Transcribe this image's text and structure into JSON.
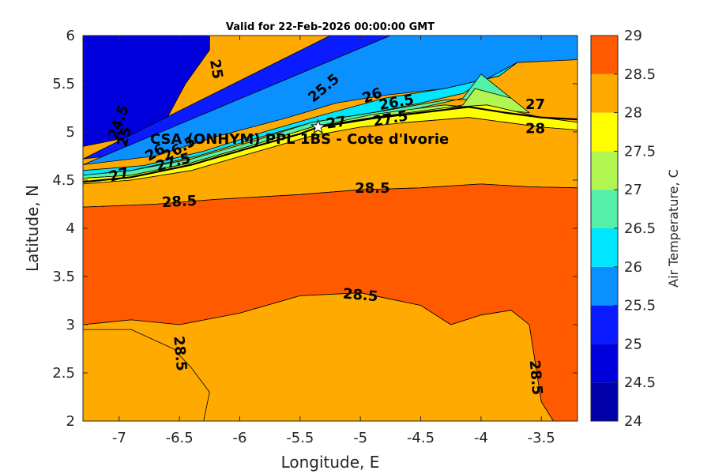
{
  "chart_data": {
    "type": "heatmap",
    "subtype": "filled-contour-map",
    "title": "Valid for 22-Feb-2026 00:00:00 GMT",
    "xlabel": "Longitude, E",
    "ylabel": "Latitude, N",
    "xlim": [
      -7.3,
      -3.2
    ],
    "ylim": [
      2,
      6
    ],
    "x_ticks": [
      -7,
      -6.5,
      -6,
      -5.5,
      -5,
      -4.5,
      -4,
      -3.5
    ],
    "x_tick_labels": [
      "-7",
      "-6.5",
      "-6",
      "-5.5",
      "-5",
      "-4.5",
      "-4",
      "-3.5"
    ],
    "y_ticks": [
      2,
      2.5,
      3,
      3.5,
      4,
      4.5,
      5,
      5.5,
      6
    ],
    "y_tick_labels": [
      "2",
      "2.5",
      "3",
      "3.5",
      "4",
      "4.5",
      "5",
      "5.5",
      "6"
    ],
    "grid": false,
    "colorbar": {
      "label": "Air Temperature, C",
      "placement": "right",
      "levels": [
        24,
        24.5,
        25,
        25.5,
        26,
        26.5,
        27,
        27.5,
        28,
        28.5,
        29
      ],
      "level_labels": [
        "24",
        "24.5",
        "25",
        "25.5",
        "26",
        "26.5",
        "27",
        "27.5",
        "28",
        "28.5",
        "29"
      ],
      "colors": [
        "#0000aa",
        "#0000dd",
        "#0a1cff",
        "#0a90ff",
        "#00e6ff",
        "#55f0a8",
        "#b0f550",
        "#ffff00",
        "#ffaa00",
        "#ff5a00",
        "#ff0000"
      ]
    },
    "bands": [
      {
        "level": 24,
        "points": [
          [
            -7.3,
            6
          ],
          [
            -6.8,
            6
          ],
          [
            -6.6,
            5.8
          ],
          [
            -6.65,
            5.45
          ],
          [
            -6.85,
            5.25
          ],
          [
            -7.3,
            5.1
          ]
        ]
      },
      {
        "level": 24.5,
        "points": [
          [
            -7.3,
            6
          ],
          [
            -6.25,
            6
          ],
          [
            -6.25,
            5.85
          ],
          [
            -6.45,
            5.5
          ],
          [
            -6.6,
            5.15
          ],
          [
            -6.9,
            4.95
          ],
          [
            -7.3,
            4.85
          ]
        ]
      },
      {
        "level": 25,
        "points": [
          [
            -5.25,
            6
          ],
          [
            -4.75,
            6
          ],
          [
            -5.3,
            5.5
          ],
          [
            -5.5,
            5.3
          ],
          [
            -5.8,
            5.15
          ],
          [
            -6.2,
            5.0
          ],
          [
            -6.6,
            4.85
          ],
          [
            -6.9,
            4.78
          ],
          [
            -7.3,
            4.72
          ]
        ]
      },
      {
        "level": 25.5,
        "points": [
          [
            -4.75,
            6
          ],
          [
            -3.2,
            6
          ],
          [
            -3.2,
            5.75
          ],
          [
            -3.7,
            5.72
          ],
          [
            -3.85,
            5.58
          ],
          [
            -4.3,
            5.45
          ],
          [
            -4.8,
            5.38
          ],
          [
            -5.2,
            5.3
          ],
          [
            -5.6,
            5.15
          ],
          [
            -6.2,
            4.95
          ],
          [
            -6.7,
            4.75
          ],
          [
            -7.3,
            4.66
          ]
        ]
      },
      {
        "level": 26,
        "points": [
          [
            -3.7,
            5.72
          ],
          [
            -3.85,
            5.58
          ],
          [
            -4.3,
            5.45
          ],
          [
            -4.8,
            5.35
          ],
          [
            -5.3,
            5.18
          ],
          [
            -5.8,
            5.0
          ],
          [
            -6.3,
            4.8
          ],
          [
            -6.8,
            4.65
          ],
          [
            -7.3,
            4.6
          ],
          [
            -7.3,
            4.55
          ],
          [
            -6.9,
            4.6
          ],
          [
            -6.35,
            4.75
          ],
          [
            -5.9,
            4.92
          ],
          [
            -5.4,
            5.1
          ],
          [
            -4.9,
            5.2
          ],
          [
            -4.5,
            5.3
          ],
          [
            -4.15,
            5.4
          ],
          [
            -3.95,
            5.55
          ]
        ]
      },
      {
        "level": 26.5,
        "points": [
          [
            -4.0,
            5.6
          ],
          [
            -3.85,
            5.45
          ],
          [
            -3.75,
            5.35
          ],
          [
            -4.3,
            5.33
          ],
          [
            -4.8,
            5.22
          ],
          [
            -5.4,
            5.1
          ],
          [
            -5.9,
            4.9
          ],
          [
            -6.4,
            4.72
          ],
          [
            -6.9,
            4.6
          ],
          [
            -7.3,
            4.55
          ],
          [
            -7.3,
            4.52
          ],
          [
            -6.9,
            4.55
          ],
          [
            -6.4,
            4.68
          ],
          [
            -5.9,
            4.86
          ],
          [
            -5.4,
            5.05
          ],
          [
            -4.9,
            5.15
          ],
          [
            -4.5,
            5.25
          ],
          [
            -4.15,
            5.35
          ]
        ]
      },
      {
        "level": 27,
        "points": [
          [
            -4.05,
            5.45
          ],
          [
            -3.75,
            5.35
          ],
          [
            -3.6,
            5.2
          ],
          [
            -4.3,
            5.28
          ],
          [
            -4.9,
            5.18
          ],
          [
            -5.4,
            5.05
          ],
          [
            -5.9,
            4.86
          ],
          [
            -6.4,
            4.68
          ],
          [
            -6.9,
            4.55
          ],
          [
            -7.3,
            4.52
          ],
          [
            -7.3,
            4.48
          ],
          [
            -6.9,
            4.52
          ],
          [
            -6.4,
            4.64
          ],
          [
            -5.9,
            4.82
          ],
          [
            -5.4,
            5.0
          ],
          [
            -4.9,
            5.1
          ],
          [
            -4.5,
            5.2
          ],
          [
            -4.15,
            5.28
          ]
        ]
      },
      {
        "level": 27.5,
        "points": [
          [
            -3.95,
            5.28
          ],
          [
            -3.5,
            5.15
          ],
          [
            -3.2,
            5.1
          ],
          [
            -3.2,
            5.02
          ],
          [
            -3.5,
            5.05
          ],
          [
            -3.8,
            5.1
          ],
          [
            -4.1,
            5.15
          ],
          [
            -4.6,
            5.1
          ],
          [
            -5.0,
            5.05
          ],
          [
            -5.4,
            4.96
          ],
          [
            -5.9,
            4.78
          ],
          [
            -6.4,
            4.6
          ],
          [
            -6.9,
            4.5
          ],
          [
            -7.3,
            4.46
          ],
          [
            -7.3,
            4.52
          ],
          [
            -6.9,
            4.55
          ],
          [
            -6.4,
            4.68
          ],
          [
            -5.9,
            4.86
          ],
          [
            -5.4,
            5.05
          ],
          [
            -4.9,
            5.15
          ],
          [
            -4.3,
            5.25
          ]
        ]
      },
      {
        "level": 28,
        "points": [
          [
            -3.2,
            5.02
          ],
          [
            -3.5,
            5.05
          ],
          [
            -3.8,
            5.1
          ],
          [
            -4.1,
            5.15
          ],
          [
            -4.6,
            5.1
          ],
          [
            -5.0,
            5.05
          ],
          [
            -5.4,
            4.96
          ],
          [
            -5.9,
            4.78
          ],
          [
            -6.4,
            4.6
          ],
          [
            -6.9,
            4.5
          ],
          [
            -7.3,
            4.46
          ],
          [
            -7.3,
            4.22
          ],
          [
            -6.7,
            4.25
          ],
          [
            -6.2,
            4.3
          ],
          [
            -5.5,
            4.35
          ],
          [
            -5.0,
            4.4
          ],
          [
            -4.5,
            4.42
          ],
          [
            -4.0,
            4.46
          ],
          [
            -3.6,
            4.43
          ],
          [
            -3.2,
            4.42
          ]
        ]
      },
      {
        "level": 28.5,
        "points": [
          [
            -7.3,
            4.22
          ],
          [
            -6.7,
            4.25
          ],
          [
            -6.2,
            4.3
          ],
          [
            -5.5,
            4.35
          ],
          [
            -5.0,
            4.4
          ],
          [
            -4.5,
            4.42
          ],
          [
            -4.0,
            4.46
          ],
          [
            -3.6,
            4.43
          ],
          [
            -3.2,
            4.42
          ],
          [
            -3.2,
            2.0
          ],
          [
            -3.4,
            2.0
          ],
          [
            -3.5,
            2.2
          ],
          [
            -3.55,
            2.6
          ],
          [
            -3.6,
            3.0
          ],
          [
            -3.75,
            3.15
          ],
          [
            -4.0,
            3.1
          ],
          [
            -4.25,
            3.0
          ],
          [
            -4.5,
            3.2
          ],
          [
            -5.0,
            3.33
          ],
          [
            -5.5,
            3.3
          ],
          [
            -6.0,
            3.12
          ],
          [
            -6.5,
            3.0
          ],
          [
            -6.9,
            3.05
          ],
          [
            -7.3,
            3.0
          ]
        ]
      },
      {
        "level": 28,
        "points": [
          [
            -7.3,
            3.0
          ],
          [
            -6.9,
            3.05
          ],
          [
            -6.5,
            3.0
          ],
          [
            -6.0,
            3.12
          ],
          [
            -5.5,
            3.3
          ],
          [
            -5.0,
            3.33
          ],
          [
            -4.5,
            3.2
          ],
          [
            -4.25,
            3.0
          ],
          [
            -4.0,
            3.1
          ],
          [
            -3.75,
            3.15
          ],
          [
            -3.6,
            3.0
          ],
          [
            -3.55,
            2.6
          ],
          [
            -3.5,
            2.2
          ],
          [
            -3.4,
            2.0
          ],
          [
            -6.3,
            2.0
          ],
          [
            -6.25,
            2.3
          ],
          [
            -6.4,
            2.55
          ],
          [
            -6.55,
            2.75
          ],
          [
            -6.9,
            2.95
          ],
          [
            -7.3,
            2.95
          ]
        ]
      }
    ],
    "contour_labels": [
      {
        "text": "25",
        "x": -6.2,
        "y": 5.65,
        "rotation": 80
      },
      {
        "text": "24.5",
        "x": -7.0,
        "y": 5.1,
        "rotation": -70
      },
      {
        "text": "25",
        "x": -6.95,
        "y": 4.95,
        "rotation": -75
      },
      {
        "text": "25.5",
        "x": -5.3,
        "y": 5.45,
        "rotation": -40
      },
      {
        "text": "26",
        "x": -4.9,
        "y": 5.37,
        "rotation": -20
      },
      {
        "text": "26.5",
        "x": -4.7,
        "y": 5.3,
        "rotation": -10
      },
      {
        "text": "27",
        "x": -5.2,
        "y": 5.09,
        "rotation": -8
      },
      {
        "text": "27.5",
        "x": -4.75,
        "y": 5.13,
        "rotation": -10
      },
      {
        "text": "26",
        "x": -6.7,
        "y": 4.78,
        "rotation": -30
      },
      {
        "text": "26.5",
        "x": -6.5,
        "y": 4.82,
        "rotation": -30
      },
      {
        "text": "27",
        "x": -7.0,
        "y": 4.55,
        "rotation": -15
      },
      {
        "text": "27.5",
        "x": -6.55,
        "y": 4.68,
        "rotation": -15
      },
      {
        "text": "27",
        "x": -3.55,
        "y": 5.28,
        "rotation": 0
      },
      {
        "text": "28",
        "x": -3.55,
        "y": 5.03,
        "rotation": 0
      },
      {
        "text": "28.5",
        "x": -4.9,
        "y": 4.41,
        "rotation": 0
      },
      {
        "text": "28.5",
        "x": -6.5,
        "y": 4.27,
        "rotation": -3
      },
      {
        "text": "28.5",
        "x": -5.0,
        "y": 3.3,
        "rotation": 5
      },
      {
        "text": "28.5",
        "x": -6.5,
        "y": 2.7,
        "rotation": 85
      },
      {
        "text": "28.5",
        "x": -3.55,
        "y": 2.45,
        "rotation": 85
      }
    ],
    "station": {
      "name": "CSA (ONHYM) PPL 1BS  - Cote d'Ivorie",
      "lon": -5.35,
      "lat": 5.05
    }
  }
}
